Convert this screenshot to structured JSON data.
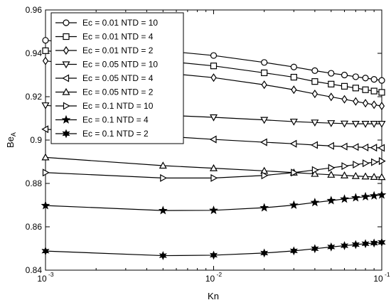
{
  "chart_data": {
    "type": "line",
    "xscale": "log",
    "xlim": [
      0.001,
      0.1
    ],
    "ylim": [
      0.84,
      0.96
    ],
    "xlabel": "Kn",
    "ylabel": {
      "base": "Be",
      "subscript": "A"
    },
    "grid": false,
    "legend_position": "top-left",
    "x_ticks": [
      {
        "value": 0.001,
        "base": "10",
        "exp": "-3"
      },
      {
        "value": 0.01,
        "base": "10",
        "exp": "-2"
      },
      {
        "value": 0.1,
        "base": "10",
        "exp": "-1"
      }
    ],
    "y_ticks": [
      "0.84",
      "0.86",
      "0.88",
      "0.9",
      "0.92",
      "0.94",
      "0.96"
    ],
    "x": [
      0.001,
      0.005,
      0.01,
      0.02,
      0.03,
      0.04,
      0.05,
      0.06,
      0.07,
      0.08,
      0.09,
      0.1
    ],
    "series": [
      {
        "name": "Ec = 0.01 NTD = 10",
        "marker": "circle",
        "values": [
          0.946,
          0.9412,
          0.939,
          0.9358,
          0.9337,
          0.932,
          0.9308,
          0.93,
          0.9292,
          0.9286,
          0.928,
          0.9275
        ]
      },
      {
        "name": "Ec = 0.01 NTD = 4",
        "marker": "square",
        "values": [
          0.9412,
          0.9365,
          0.9342,
          0.931,
          0.929,
          0.927,
          0.9258,
          0.9248,
          0.924,
          0.9232,
          0.9226,
          0.922
        ]
      },
      {
        "name": "Ec = 0.01 NTD = 2",
        "marker": "diamond",
        "values": [
          0.9365,
          0.931,
          0.9288,
          0.9255,
          0.9232,
          0.9213,
          0.9199,
          0.9188,
          0.9178,
          0.917,
          0.9163,
          0.9157
        ]
      },
      {
        "name": "Ec = 0.05 NTD = 10",
        "marker": "triangle-down",
        "values": [
          0.916,
          0.9115,
          0.9105,
          0.9093,
          0.9085,
          0.9081,
          0.9078,
          0.9076,
          0.9075,
          0.9075,
          0.9075,
          0.9075
        ]
      },
      {
        "name": "Ec = 0.05 NTD = 4",
        "marker": "triangle-left",
        "values": [
          0.905,
          0.9018,
          0.9003,
          0.899,
          0.8983,
          0.8977,
          0.8973,
          0.897,
          0.8968,
          0.8966,
          0.8965,
          0.8964
        ]
      },
      {
        "name": "Ec = 0.05 NTD = 2",
        "marker": "triangle-up",
        "values": [
          0.892,
          0.8882,
          0.887,
          0.8858,
          0.885,
          0.8844,
          0.884,
          0.8837,
          0.8834,
          0.8832,
          0.883,
          0.8829
        ]
      },
      {
        "name": "Ec = 0.1 NTD = 10",
        "marker": "triangle-right",
        "values": [
          0.885,
          0.8825,
          0.8825,
          0.8837,
          0.885,
          0.8862,
          0.8872,
          0.888,
          0.8887,
          0.8893,
          0.8898,
          0.8903
        ]
      },
      {
        "name": "Ec = 0.1 NTD = 4",
        "marker": "star",
        "values": [
          0.8698,
          0.8675,
          0.8676,
          0.8688,
          0.87,
          0.8712,
          0.8721,
          0.8728,
          0.8734,
          0.8739,
          0.8743,
          0.8747
        ]
      },
      {
        "name": "Ec = 0.1 NTD = 2",
        "marker": "star6",
        "values": [
          0.8488,
          0.8467,
          0.8469,
          0.8479,
          0.8489,
          0.8499,
          0.8507,
          0.8513,
          0.8518,
          0.8522,
          0.8525,
          0.8528
        ]
      }
    ]
  }
}
